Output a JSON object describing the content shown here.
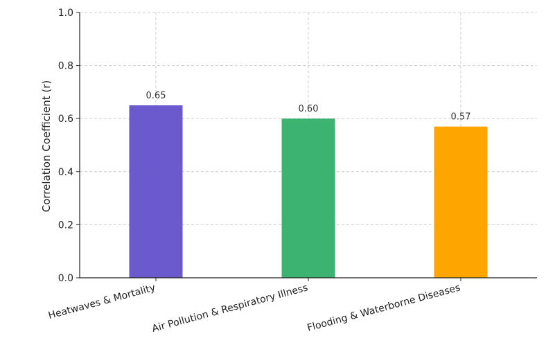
{
  "chart_data": {
    "type": "bar",
    "title": "",
    "xlabel": "",
    "ylabel": "Correlation Coefficient (r)",
    "ylim": [
      0,
      1.0
    ],
    "yticks": [
      "0.0",
      "0.2",
      "0.4",
      "0.6",
      "0.8",
      "1.0"
    ],
    "grid": true,
    "categories": [
      "Heatwaves & Mortality",
      "Air Pollution & Respiratory Illness",
      "Flooding & Waterborne Diseases"
    ],
    "values": [
      0.65,
      0.6,
      0.57
    ],
    "value_labels": [
      "0.65",
      "0.60",
      "0.57"
    ],
    "colors": [
      "#6a5acd",
      "#3cb371",
      "#ffa500"
    ]
  }
}
